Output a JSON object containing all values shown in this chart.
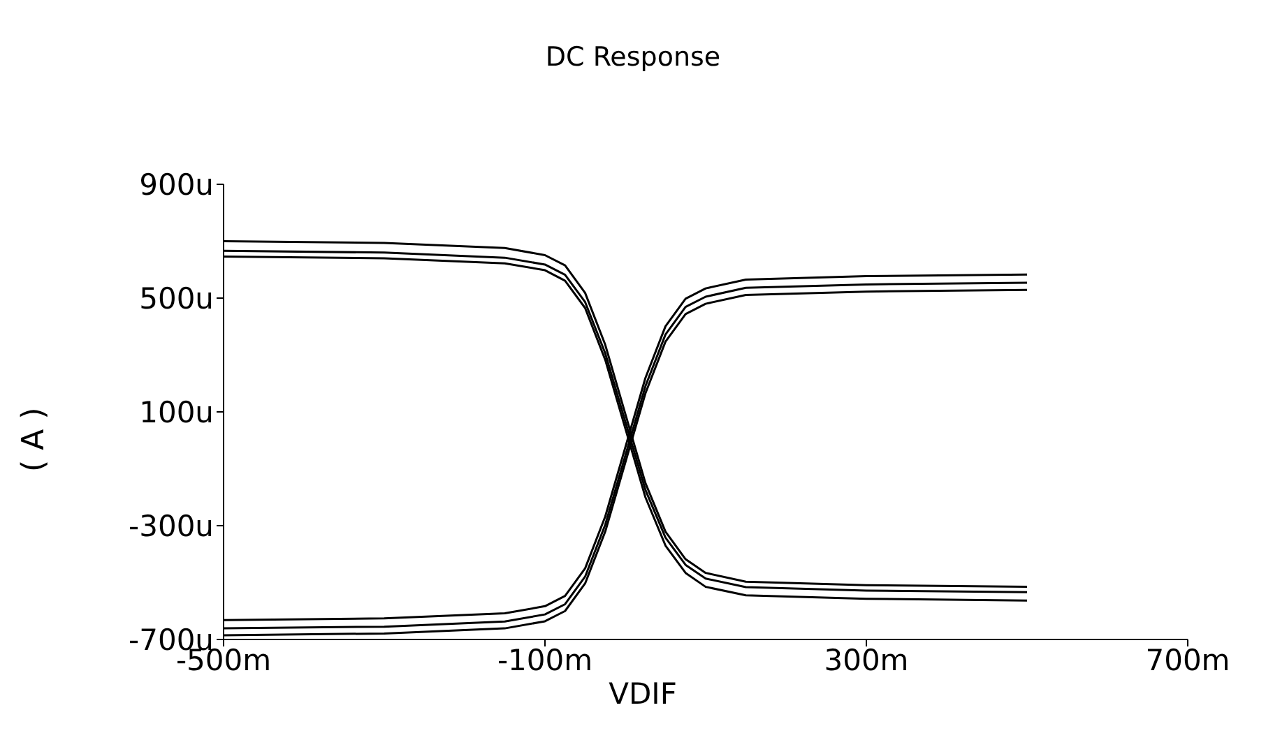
{
  "chart_data": {
    "type": "line",
    "title": "DC Response",
    "xlabel": "VDIF",
    "ylabel": "( A )",
    "x": [
      -500,
      -300,
      -150,
      -100,
      -75,
      -50,
      -25,
      0,
      25,
      50,
      75,
      100,
      150,
      300,
      500
    ],
    "series": [
      {
        "color": "#000000",
        "values": [
          700,
          694,
          676,
          651,
          615,
          518,
          336,
          93,
          -150,
          -321,
          -418,
          -466,
          -497,
          -509,
          -515
        ]
      },
      {
        "color": "#000000",
        "values": [
          666,
          660,
          642,
          618,
          582,
          486,
          306,
          66,
          -174,
          -342,
          -438,
          -486,
          -516,
          -528,
          -534
        ]
      },
      {
        "color": "#000000",
        "values": [
          646,
          640,
          622,
          598,
          561,
          465,
          283,
          42,
          -200,
          -370,
          -466,
          -515,
          -545,
          -557,
          -563
        ]
      },
      {
        "color": "#000000",
        "values": [
          -632,
          -626,
          -608,
          -583,
          -547,
          -450,
          -268,
          -25,
          219,
          401,
          498,
          534,
          565,
          577,
          583
        ]
      },
      {
        "color": "#000000",
        "values": [
          -661,
          -655,
          -637,
          -612,
          -576,
          -479,
          -297,
          -54,
          190,
          372,
          469,
          505,
          536,
          548,
          554
        ]
      },
      {
        "color": "#000000",
        "values": [
          -685,
          -679,
          -661,
          -636,
          -600,
          -503,
          -321,
          -78,
          165,
          347,
          444,
          480,
          511,
          523,
          529
        ]
      }
    ],
    "xlim": [
      -500,
      700
    ],
    "xticks": [
      {
        "value": -500,
        "label": "-500m"
      },
      {
        "value": -100,
        "label": "-100m"
      },
      {
        "value": 300,
        "label": "300m"
      },
      {
        "value": 700,
        "label": "700m"
      }
    ],
    "ylim": [
      -700,
      900
    ],
    "yticks": [
      {
        "value": -700,
        "label": "-700u"
      },
      {
        "value": -300,
        "label": "-300u"
      },
      {
        "value": 100,
        "label": "100u"
      },
      {
        "value": 500,
        "label": "500u"
      },
      {
        "value": 900,
        "label": "900u"
      }
    ],
    "marker": "none",
    "line_style": "solid"
  }
}
